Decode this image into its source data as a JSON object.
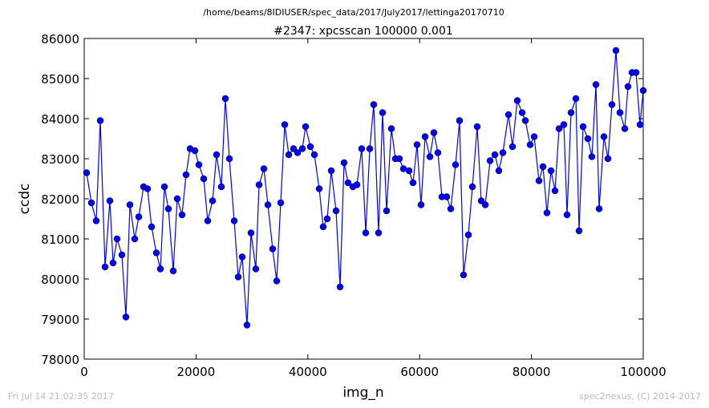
{
  "chart_data": {
    "type": "line",
    "suptitle": "/home/beams/8IDIUSER/spec_data/2017/July2017/lettinga20170710",
    "title": "#2347: xpcsscan 100000 0.001",
    "xlabel": "img_n",
    "ylabel": "ccdc",
    "footer_left": "Fri Jul 14 21:02:35 2017",
    "footer_right": "spec2nexus, (C) 2014-2017",
    "x": [
      430,
      1290,
      2150,
      2870,
      3730,
      4590,
      5160,
      5880,
      6740,
      7460,
      8180,
      9040,
      9760,
      10620,
      11330,
      12050,
      12910,
      13630,
      14350,
      15060,
      15930,
      16640,
      17500,
      18220,
      18940,
      19800,
      20520,
      21380,
      22090,
      22960,
      23670,
      24530,
      25250,
      25970,
      26830,
      27550,
      28260,
      29120,
      29840,
      30700,
      31280,
      32140,
      32860,
      33710,
      34430,
      35150,
      35870,
      36590,
      37450,
      38160,
      39020,
      39600,
      40460,
      41180,
      42040,
      42750,
      43470,
      44190,
      45050,
      45770,
      46480,
      47200,
      48060,
      48780,
      49640,
      50360,
      51080,
      51790,
      52650,
      53370,
      54090,
      54950,
      55670,
      56380,
      57100,
      58110,
      58820,
      59540,
      60260,
      60980,
      61840,
      62550,
      63270,
      63990,
      64850,
      65570,
      66430,
      67140,
      67860,
      68720,
      69440,
      70300,
      71020,
      71740,
      72600,
      73460,
      74170,
      74890,
      75900,
      76610,
      77470,
      78340,
      78910,
      79770,
      80490,
      81350,
      82070,
      82780,
      83500,
      84220,
      84940,
      85800,
      86370,
      87090,
      87950,
      88520,
      89240,
      90100,
      90820,
      91540,
      92110,
      92970,
      93690,
      94400,
      95120,
      95840,
      96700,
      97270,
      97990,
      98710,
      99430,
      100000
    ],
    "series": [
      {
        "name": "ccdc",
        "color": "#0000ff",
        "values": [
          82650,
          81900,
          81450,
          83950,
          80300,
          81950,
          80400,
          81000,
          80600,
          79050,
          81850,
          81000,
          81550,
          82300,
          82250,
          81300,
          80650,
          80250,
          82300,
          81750,
          80200,
          82000,
          81600,
          82600,
          83250,
          83200,
          82850,
          82500,
          81450,
          81950,
          83100,
          82300,
          84500,
          83000,
          81450,
          80050,
          80550,
          78850,
          81150,
          80250,
          82350,
          82750,
          81850,
          80750,
          79950,
          81900,
          83850,
          83100,
          83250,
          83150,
          83250,
          83800,
          83300,
          83100,
          82250,
          81300,
          81500,
          82700,
          81700,
          79800,
          82900,
          82400,
          82300,
          82350,
          83250,
          81150,
          83250,
          84350,
          81150,
          84150,
          81700,
          83750,
          83000,
          83000,
          82750,
          82700,
          82400,
          83350,
          81850,
          83550,
          83050,
          83650,
          83150,
          82050,
          82050,
          81750,
          82850,
          83950,
          80100,
          81100,
          82300,
          83800,
          81950,
          81850,
          82950,
          83100,
          82700,
          83150,
          84100,
          83300,
          84450,
          84150,
          83950,
          83350,
          83550,
          82450,
          82800,
          81650,
          82700,
          82200,
          83750,
          83850,
          81600,
          84150,
          84500,
          81200,
          83800,
          83500,
          83050,
          84850,
          81750,
          83550,
          83000,
          84350,
          85700,
          84150,
          83750,
          84800,
          85150,
          85150,
          83850,
          84700
        ]
      }
    ],
    "xlim": [
      0,
      100000
    ],
    "ylim": [
      78000,
      86000
    ],
    "xticks": [
      0,
      20000,
      40000,
      60000,
      80000,
      100000
    ],
    "yticks": [
      78000,
      79000,
      80000,
      81000,
      82000,
      83000,
      84000,
      85000,
      86000
    ]
  }
}
